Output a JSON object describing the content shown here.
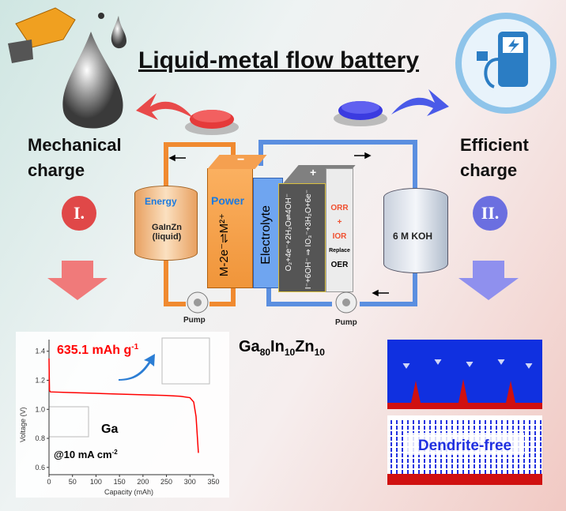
{
  "title": "Liquid-metal flow battery",
  "left": {
    "heading": "Mechanical charge",
    "line1": "Mechanical",
    "line2": "charge",
    "numeral": "I.",
    "color": "#e04848"
  },
  "right": {
    "line1": "Efficient",
    "line2": "charge",
    "numeral": "II.",
    "color": "#6b6fe0"
  },
  "battery": {
    "energy": "Energy",
    "tank_left_1": "GaInZn",
    "tank_left_2": "(liquid)",
    "power": "Power",
    "anode_reaction": "M-2e⁻⇌M²⁺",
    "minus": "−",
    "plus": "+",
    "electrolyte": "Electrolyte",
    "cathode_reaction_1": "O₂+4e⁻+2H₂O⇌4OH⁻",
    "cathode_reaction_2": "I⁻+6OH⁻ ⇒ IO₃⁻+3H₂O+6e⁻",
    "orr": "ORR",
    "plus_sign": "+",
    "ior": "IOR",
    "replace": "Replace",
    "oer": "OER",
    "tank_right": "6 M KOH",
    "pump_left": "Pump",
    "pump_right": "Pump"
  },
  "alloy": "Ga80In10Zn10",
  "alloy_parts": {
    "a": "Ga",
    "a_sub": "80",
    "b": "In",
    "b_sub": "10",
    "c": "Zn",
    "c_sub": "10"
  },
  "dendrite_label": "Dendrite-free",
  "chart_data": {
    "type": "line",
    "xlabel": "Capacity (mAh)",
    "ylabel": "Voltage (V)",
    "xlim": [
      0,
      350
    ],
    "ylim": [
      0.55,
      1.48
    ],
    "xticks": [
      0,
      50,
      100,
      150,
      200,
      250,
      300,
      350
    ],
    "yticks": [
      0.6,
      0.8,
      1.0,
      1.2,
      1.4
    ],
    "series": [
      {
        "color": "#ff0000",
        "x": [
          0,
          1,
          3,
          50,
          100,
          150,
          200,
          250,
          280,
          300,
          308,
          313,
          316,
          318
        ],
        "y": [
          1.35,
          1.13,
          1.12,
          1.115,
          1.11,
          1.105,
          1.1,
          1.095,
          1.09,
          1.08,
          1.05,
          0.95,
          0.8,
          0.7
        ]
      }
    ],
    "annotations": {
      "capacity": "635.1 mAh g",
      "capacity_sup": "-1",
      "element": "Ga",
      "current": "@10 mA cm",
      "current_sup": "-2"
    }
  }
}
